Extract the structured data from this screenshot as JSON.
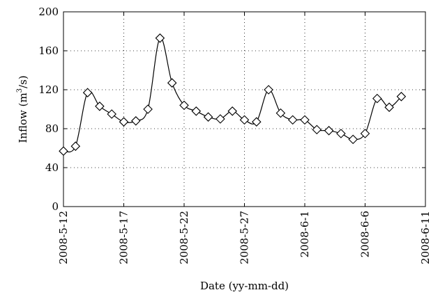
{
  "chart_data": {
    "type": "line",
    "title": "",
    "xlabel": "Date (yy-mm-dd)",
    "ylabel_main": "Inflow (m",
    "ylabel_sup": "3",
    "ylabel_tail": "/s)",
    "ylim": [
      0,
      200
    ],
    "yticks": [
      0,
      40,
      80,
      120,
      160,
      200
    ],
    "xlim": [
      "2008-05-12",
      "2008-06-11"
    ],
    "xticks": [
      "2008-5-12",
      "2008-5-17",
      "2008-5-22",
      "2008-5-27",
      "2008-6-1",
      "2008-6-6",
      "2008-6-11"
    ],
    "grid": true,
    "series": [
      {
        "x": [
          "2008-05-12",
          "2008-05-13",
          "2008-05-14",
          "2008-05-15",
          "2008-05-16",
          "2008-05-17",
          "2008-05-18",
          "2008-05-19",
          "2008-05-20",
          "2008-05-21",
          "2008-05-22",
          "2008-05-23",
          "2008-05-24",
          "2008-05-25",
          "2008-05-26",
          "2008-05-27",
          "2008-05-28",
          "2008-05-29",
          "2008-05-30",
          "2008-05-31",
          "2008-06-01",
          "2008-06-02",
          "2008-06-03",
          "2008-06-04",
          "2008-06-05",
          "2008-06-06",
          "2008-06-07",
          "2008-06-08",
          "2008-06-09"
        ],
        "values": [
          57,
          62,
          117,
          103,
          95,
          87,
          88,
          100,
          173,
          127,
          104,
          98,
          92,
          90,
          98,
          89,
          87,
          120,
          96,
          89,
          89,
          79,
          78,
          75,
          69,
          75,
          111,
          102,
          113
        ]
      }
    ]
  }
}
